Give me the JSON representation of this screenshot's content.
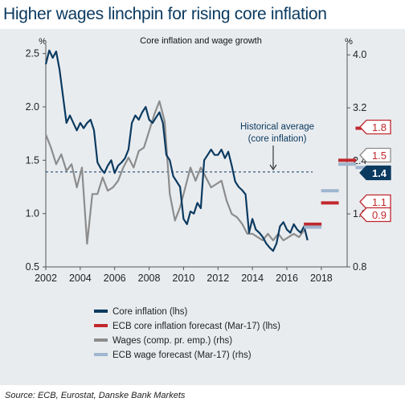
{
  "title": "Higher wages linchpin for rising core inflation",
  "source": "Source: ECB, Eurostat, Danske Bank Markets",
  "colors": {
    "core": "#0b3a60",
    "ecb_core": "#c0282d",
    "wages": "#8c8c8c",
    "ecb_wage": "#9fb6cf",
    "panel": "#e9ecef",
    "average": "#0b3a60"
  },
  "chart_data": {
    "type": "line",
    "title": "Core inflation and wage growth",
    "ylabel_left": "%",
    "ylabel_right": "%",
    "x_ticks": [
      "2002",
      "2004",
      "2006",
      "2008",
      "2010",
      "2012",
      "2014",
      "2016",
      "2018"
    ],
    "x_range": [
      2002,
      2019.5
    ],
    "y_left_ticks": [
      "0.5",
      "1.0",
      "1.5",
      "2.0",
      "2.5"
    ],
    "y_left_range": [
      0.5,
      2.55
    ],
    "y_right_ticks": [
      "0.8",
      "1.6",
      "2.4",
      "3.2",
      "4.0"
    ],
    "y_right_range": [
      0.8,
      4.1
    ],
    "grid": false,
    "legend_position": "bottom",
    "legend": [
      {
        "label": "Core inflation (lhs)",
        "color": "#0b3a60"
      },
      {
        "label": "ECB core inflation forecast (Mar-17) (lhs)",
        "color": "#c0282d"
      },
      {
        "label": "Wages (comp. pr. emp.) (rhs)",
        "color": "#8c8c8c"
      },
      {
        "label": "ECB wage forecast (Mar-17) (rhs)",
        "color": "#9fb6cf"
      }
    ],
    "annotation": {
      "text_line1": "Historical average",
      "text_line2": "(core inflation)",
      "value": 1.39
    },
    "series": [
      {
        "name": "Core inflation (lhs)",
        "axis": "left",
        "x": [
          2002.0,
          2002.2,
          2002.4,
          2002.6,
          2002.8,
          2003.0,
          2003.2,
          2003.4,
          2003.6,
          2003.8,
          2004.0,
          2004.2,
          2004.4,
          2004.6,
          2004.8,
          2005.0,
          2005.2,
          2005.4,
          2005.6,
          2005.8,
          2006.0,
          2006.2,
          2006.4,
          2006.6,
          2006.8,
          2007.0,
          2007.2,
          2007.4,
          2007.6,
          2007.8,
          2008.0,
          2008.2,
          2008.4,
          2008.6,
          2008.8,
          2009.0,
          2009.2,
          2009.4,
          2009.6,
          2009.8,
          2010.0,
          2010.2,
          2010.4,
          2010.6,
          2010.8,
          2011.0,
          2011.2,
          2011.4,
          2011.6,
          2011.8,
          2012.0,
          2012.2,
          2012.4,
          2012.6,
          2012.8,
          2013.0,
          2013.2,
          2013.4,
          2013.6,
          2013.8,
          2014.0,
          2014.2,
          2014.4,
          2014.6,
          2014.8,
          2015.0,
          2015.2,
          2015.4,
          2015.6,
          2015.8,
          2016.0,
          2016.2,
          2016.4,
          2016.6,
          2016.8,
          2017.0,
          2017.2
        ],
        "values": [
          2.4,
          2.53,
          2.46,
          2.52,
          2.35,
          2.1,
          1.85,
          1.92,
          1.85,
          1.78,
          1.85,
          1.8,
          1.85,
          1.88,
          1.78,
          1.48,
          1.42,
          1.38,
          1.45,
          1.5,
          1.38,
          1.45,
          1.48,
          1.52,
          1.6,
          1.85,
          1.92,
          1.88,
          1.95,
          2.0,
          1.88,
          1.85,
          1.9,
          1.95,
          1.85,
          1.55,
          1.5,
          1.35,
          1.3,
          1.25,
          0.95,
          0.9,
          1.02,
          1.0,
          1.1,
          1.05,
          1.5,
          1.55,
          1.6,
          1.55,
          1.55,
          1.6,
          1.52,
          1.58,
          1.45,
          1.3,
          1.25,
          1.22,
          1.18,
          0.82,
          0.95,
          0.85,
          0.82,
          0.78,
          0.72,
          0.68,
          0.65,
          0.72,
          0.88,
          0.92,
          0.85,
          0.82,
          0.9,
          0.85,
          0.82,
          0.88,
          0.75
        ]
      },
      {
        "name": "Wages (comp. pr. emp.) (rhs)",
        "axis": "right",
        "x": [
          2002.0,
          2002.3,
          2002.6,
          2002.9,
          2003.2,
          2003.5,
          2003.8,
          2004.1,
          2004.4,
          2004.7,
          2005.0,
          2005.3,
          2005.6,
          2005.9,
          2006.2,
          2006.5,
          2006.8,
          2007.1,
          2007.4,
          2007.7,
          2008.0,
          2008.3,
          2008.6,
          2008.9,
          2009.2,
          2009.5,
          2009.8,
          2010.1,
          2010.4,
          2010.7,
          2011.0,
          2011.3,
          2011.6,
          2011.9,
          2012.2,
          2012.5,
          2012.8,
          2013.1,
          2013.4,
          2013.7,
          2014.0,
          2014.3,
          2014.6,
          2014.9,
          2015.2,
          2015.5,
          2015.8,
          2016.1,
          2016.4,
          2016.7,
          2017.0
        ],
        "values": [
          2.8,
          2.6,
          2.35,
          2.5,
          2.25,
          2.35,
          2.0,
          2.3,
          1.15,
          1.9,
          1.9,
          2.15,
          1.95,
          2.0,
          2.1,
          2.3,
          2.45,
          2.3,
          2.55,
          2.6,
          2.85,
          3.1,
          3.3,
          3.0,
          1.9,
          1.5,
          1.7,
          2.0,
          2.3,
          2.1,
          2.3,
          2.15,
          2.0,
          2.05,
          2.1,
          1.8,
          1.6,
          1.55,
          1.45,
          1.3,
          1.3,
          1.25,
          1.2,
          1.3,
          1.2,
          1.3,
          1.2,
          1.25,
          1.3,
          1.25,
          1.35
        ]
      },
      {
        "name": "ECB core inflation forecast (Mar-17) (lhs)",
        "axis": "left",
        "points": [
          {
            "x": 2017,
            "y": 0.9
          },
          {
            "x": 2018,
            "y": 1.1
          },
          {
            "x": 2019,
            "y": 1.5
          },
          {
            "x": 2020,
            "y": 1.8
          }
        ]
      },
      {
        "name": "ECB wage forecast (Mar-17) (rhs)",
        "axis": "right",
        "points": [
          {
            "x": 2017,
            "y": 1.4
          },
          {
            "x": 2018,
            "y": 1.95
          },
          {
            "x": 2019,
            "y": 2.35
          },
          {
            "x": 2020,
            "y": 2.3
          }
        ]
      }
    ],
    "value_labels": [
      {
        "text": "1.8",
        "style": "outline-red"
      },
      {
        "text": "1.5",
        "style": "outline-gray"
      },
      {
        "text": "1.4",
        "style": "filled-navy"
      },
      {
        "text": "1.1",
        "style": "outline-red"
      },
      {
        "text": "0.9",
        "style": "outline-red"
      }
    ]
  }
}
